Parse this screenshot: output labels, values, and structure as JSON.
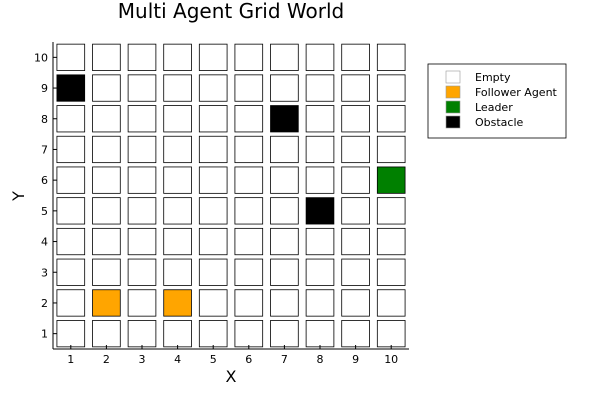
{
  "chart_data": {
    "type": "heatmap",
    "title": "Multi Agent Grid World",
    "xlabel": "X",
    "ylabel": "Y",
    "x_ticks": [
      "1",
      "2",
      "3",
      "4",
      "5",
      "6",
      "7",
      "8",
      "9",
      "10"
    ],
    "y_ticks": [
      "1",
      "2",
      "3",
      "4",
      "5",
      "6",
      "7",
      "8",
      "9",
      "10"
    ],
    "xlim": [
      0.5,
      10.5
    ],
    "ylim": [
      0.5,
      10.5
    ],
    "grid_size": [
      10,
      10
    ],
    "legend_position": "top-right",
    "categories": [
      {
        "key": "empty",
        "label": "Empty",
        "color": "#ffffff"
      },
      {
        "key": "follower",
        "label": "Follower Agent",
        "color": "#ffa500"
      },
      {
        "key": "leader",
        "label": "Leader",
        "color": "#008000"
      },
      {
        "key": "obstacle",
        "label": "Obstacle",
        "color": "#000000"
      }
    ],
    "default_state": "empty",
    "cells": [
      {
        "x": 1,
        "y": 9,
        "state": "obstacle"
      },
      {
        "x": 7,
        "y": 8,
        "state": "obstacle"
      },
      {
        "x": 8,
        "y": 5,
        "state": "obstacle"
      },
      {
        "x": 10,
        "y": 6,
        "state": "leader"
      },
      {
        "x": 2,
        "y": 2,
        "state": "follower"
      },
      {
        "x": 4,
        "y": 2,
        "state": "follower"
      }
    ]
  }
}
